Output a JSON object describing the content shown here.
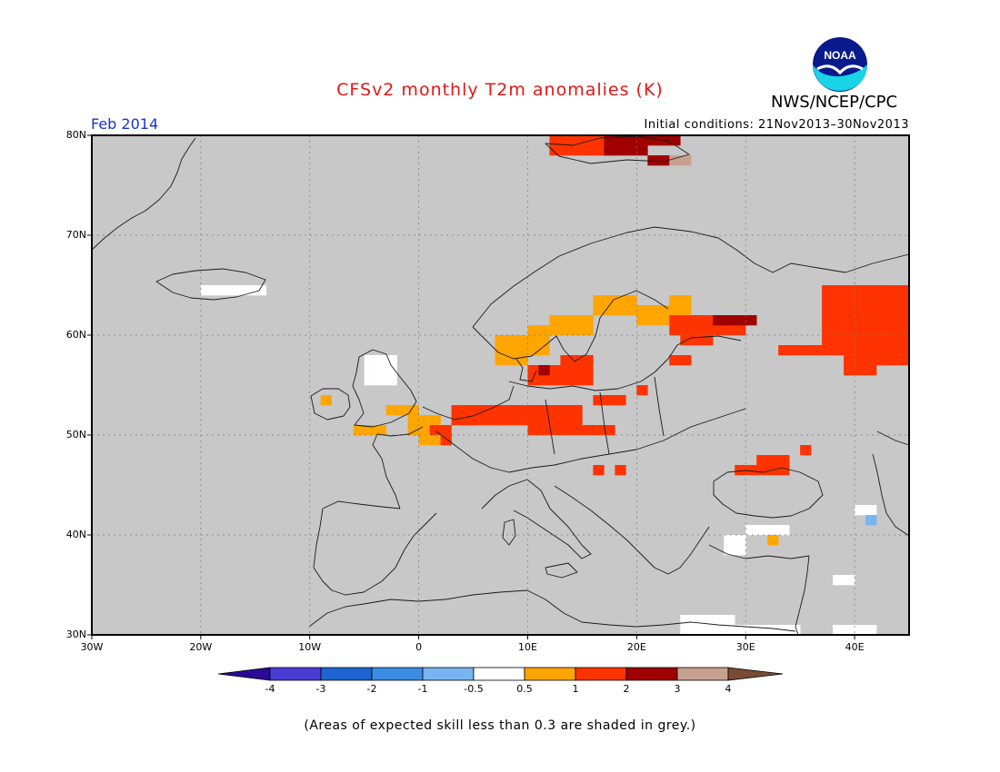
{
  "title": "CFSv2 monthly T2m anomalies (K)",
  "agency": "NWS/NCEP/CPC",
  "logo_text": "NOAA",
  "period": "Feb 2014",
  "initial_conditions": "Initial conditions: 21Nov2013–30Nov2013",
  "footnote": "(Areas of expected skill less than 0.3 are shaded in grey.)",
  "map": {
    "lon_range": [
      -30,
      45
    ],
    "lat_range": [
      30,
      80
    ],
    "lat_ticks": [
      "30N",
      "40N",
      "50N",
      "60N",
      "70N",
      "80N"
    ],
    "lon_ticks": [
      "30W",
      "20W",
      "10W",
      "0",
      "10E",
      "20E",
      "30E",
      "40E"
    ],
    "gridlines": "dotted",
    "colors": {
      "background_grey": "#c8c8c8",
      "neutral_white": "#ffffff",
      "light_orange": "#ffa500",
      "red_orange": "#ff3300",
      "dark_red": "#a00000",
      "pink_brown": "#c8a090",
      "light_blue": "#78b4f0"
    }
  },
  "colorbar": {
    "labels": [
      "-4",
      "-3",
      "-2",
      "-1",
      "-0.5",
      "0.5",
      "1",
      "2",
      "3",
      "4"
    ],
    "colors": [
      "#2a0a96",
      "#4a3cd2",
      "#1e64d2",
      "#3c8ce6",
      "#78b4f0",
      "#ffffff",
      "#ffa500",
      "#ff3300",
      "#a00000",
      "#c8a090",
      "#7a4a35"
    ]
  }
}
